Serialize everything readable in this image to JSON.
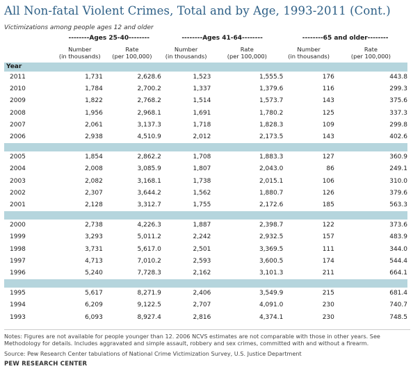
{
  "title": "All Non-fatal Violent Crimes, Total and by Age, 1993-2011 (Cont.)",
  "subtitle": "Victimizations among people ages 12 and older",
  "groups": [
    "--------Ages 25-40--------",
    "--------Ages 41-64--------",
    "--------65 and older--------"
  ],
  "subheaders": {
    "number": [
      "Number",
      "(in thousands)"
    ],
    "rate": [
      "Rate",
      "(per 100,000)"
    ]
  },
  "year_label": "Year",
  "rows": [
    [
      "2011",
      "1,731",
      "2,628.6",
      "1,523",
      "1,555.5",
      "176",
      "443.8"
    ],
    [
      "2010",
      "1,784",
      "2,700.2",
      "1,337",
      "1,379.6",
      "116",
      "299.3"
    ],
    [
      "2009",
      "1,822",
      "2,768.2",
      "1,514",
      "1,573.7",
      "143",
      "375.6"
    ],
    [
      "2008",
      "1,956",
      "2,968.1",
      "1,691",
      "1,780.2",
      "125",
      "337.3"
    ],
    [
      "2007",
      "2,061",
      "3,137.3",
      "1,718",
      "1,828.3",
      "109",
      "299.8"
    ],
    [
      "2006",
      "2,938",
      "4,510.9",
      "2,012",
      "2,173.5",
      "143",
      "402.6"
    ],
    [
      "2005",
      "1,854",
      "2,862.2",
      "1,708",
      "1,883.3",
      "127",
      "360.9"
    ],
    [
      "2004",
      "2,008",
      "3,085.9",
      "1,807",
      "2,043.0",
      "86",
      "249.1"
    ],
    [
      "2003",
      "2,082",
      "3,168.1",
      "1,738",
      "2,015.1",
      "106",
      "310.0"
    ],
    [
      "2002",
      "2,307",
      "3,644.2",
      "1,562",
      "1,880.7",
      "126",
      "379.6"
    ],
    [
      "2001",
      "2,128",
      "3,312.7",
      "1,755",
      "2,172.6",
      "185",
      "563.3"
    ],
    [
      "2000",
      "2,738",
      "4,226.3",
      "1,887",
      "2,398.7",
      "122",
      "373.6"
    ],
    [
      "1999",
      "3,293",
      "5,011.2",
      "2,242",
      "2,932.5",
      "157",
      "483.9"
    ],
    [
      "1998",
      "3,731",
      "5,617.0",
      "2,501",
      "3,369.5",
      "111",
      "344.0"
    ],
    [
      "1997",
      "4,713",
      "7,010.2",
      "2,593",
      "3,600.5",
      "174",
      "544.4"
    ],
    [
      "1996",
      "5,240",
      "7,728.3",
      "2,162",
      "3,101.3",
      "211",
      "664.1"
    ],
    [
      "1995",
      "5,617",
      "8,271.9",
      "2,406",
      "3,549.9",
      "215",
      "681.4"
    ],
    [
      "1994",
      "6,209",
      "9,122.5",
      "2,707",
      "4,091.0",
      "230",
      "740.7"
    ],
    [
      "1993",
      "6,093",
      "8,927.4",
      "2,816",
      "4,374.1",
      "230",
      "748.5"
    ]
  ],
  "notes": "Notes: Figures are not available for people younger than 12. 2006 NCVS estimates are not comparable with those in other years. See Methodology for details. Includes aggravated and simple assault, robbery and sex crimes, committed with and without a firearm.",
  "source": "Source: Pew Research Center tabulations of National Crime Victimization Survey, U.S. Justice Department",
  "brand": "PEW RESEARCH CENTER",
  "colors": {
    "title": "#2d5f86",
    "band": "#b5d5dd"
  }
}
